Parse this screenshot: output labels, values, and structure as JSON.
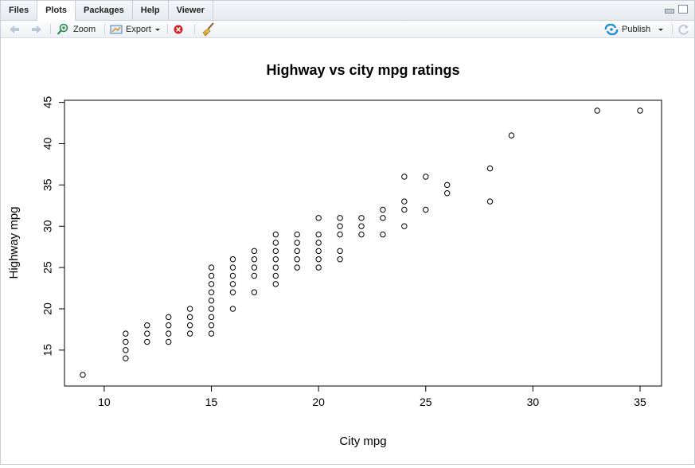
{
  "tabs": [
    {
      "label": "Files",
      "active": false
    },
    {
      "label": "Plots",
      "active": true
    },
    {
      "label": "Packages",
      "active": false
    },
    {
      "label": "Help",
      "active": false
    },
    {
      "label": "Viewer",
      "active": false
    }
  ],
  "toolbar": {
    "back_icon": "arrow-left-icon",
    "forward_icon": "arrow-right-icon",
    "zoom_label": "Zoom",
    "export_label": "Export",
    "remove_icon": "remove-plot-icon",
    "clear_icon": "broom-icon",
    "publish_label": "Publish",
    "refresh_icon": "refresh-icon"
  },
  "colors": {
    "tab_bar": "#e6eaef",
    "publish_icon": "#1f8ecf",
    "remove_icon": "#d22222",
    "zoom_icon": "#2e8b57"
  },
  "chart_data": {
    "type": "scatter",
    "title": "Highway vs city mpg ratings",
    "xlabel": "City mpg",
    "ylabel": "Highway mpg",
    "xlim": [
      9,
      35
    ],
    "ylim": [
      12,
      44
    ],
    "xticks": [
      10,
      15,
      20,
      25,
      30,
      35
    ],
    "yticks": [
      15,
      20,
      25,
      30,
      35,
      40,
      45
    ],
    "grid": false,
    "marker": "open-circle",
    "points": [
      [
        9,
        12
      ],
      [
        11,
        14
      ],
      [
        11,
        15
      ],
      [
        11,
        16
      ],
      [
        11,
        17
      ],
      [
        12,
        16
      ],
      [
        12,
        17
      ],
      [
        12,
        18
      ],
      [
        13,
        16
      ],
      [
        13,
        17
      ],
      [
        13,
        18
      ],
      [
        13,
        19
      ],
      [
        14,
        17
      ],
      [
        14,
        18
      ],
      [
        14,
        19
      ],
      [
        14,
        20
      ],
      [
        15,
        17
      ],
      [
        15,
        18
      ],
      [
        15,
        19
      ],
      [
        15,
        20
      ],
      [
        15,
        21
      ],
      [
        15,
        22
      ],
      [
        15,
        23
      ],
      [
        15,
        24
      ],
      [
        15,
        25
      ],
      [
        16,
        20
      ],
      [
        16,
        22
      ],
      [
        16,
        23
      ],
      [
        16,
        24
      ],
      [
        16,
        25
      ],
      [
        16,
        26
      ],
      [
        17,
        22
      ],
      [
        17,
        24
      ],
      [
        17,
        25
      ],
      [
        17,
        26
      ],
      [
        17,
        27
      ],
      [
        18,
        23
      ],
      [
        18,
        24
      ],
      [
        18,
        25
      ],
      [
        18,
        26
      ],
      [
        18,
        27
      ],
      [
        18,
        28
      ],
      [
        18,
        29
      ],
      [
        19,
        25
      ],
      [
        19,
        26
      ],
      [
        19,
        27
      ],
      [
        19,
        28
      ],
      [
        19,
        29
      ],
      [
        20,
        25
      ],
      [
        20,
        26
      ],
      [
        20,
        27
      ],
      [
        20,
        28
      ],
      [
        20,
        29
      ],
      [
        20,
        31
      ],
      [
        21,
        26
      ],
      [
        21,
        27
      ],
      [
        21,
        29
      ],
      [
        21,
        30
      ],
      [
        21,
        31
      ],
      [
        22,
        29
      ],
      [
        22,
        30
      ],
      [
        22,
        31
      ],
      [
        23,
        29
      ],
      [
        23,
        31
      ],
      [
        23,
        32
      ],
      [
        24,
        30
      ],
      [
        24,
        32
      ],
      [
        24,
        33
      ],
      [
        24,
        36
      ],
      [
        25,
        32
      ],
      [
        25,
        36
      ],
      [
        26,
        34
      ],
      [
        26,
        35
      ],
      [
        28,
        33
      ],
      [
        28,
        37
      ],
      [
        29,
        41
      ],
      [
        33,
        44
      ],
      [
        35,
        44
      ]
    ]
  }
}
